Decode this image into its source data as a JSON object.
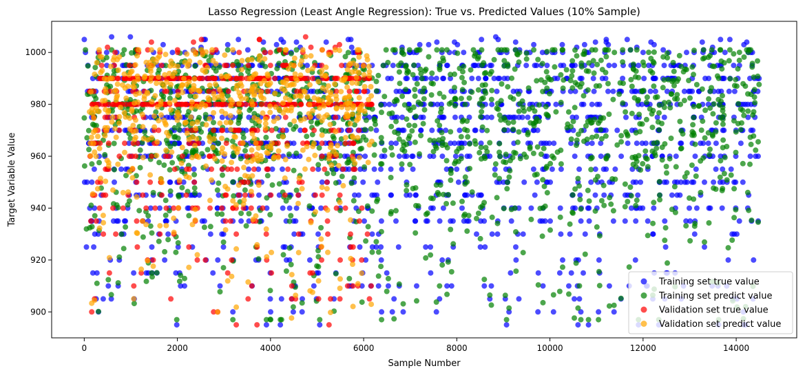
{
  "chart_data": {
    "type": "scatter",
    "title": "Lasso Regression (Least Angle Regression): True vs. Predicted Values (10% Sample)",
    "xlabel": "Sample Number",
    "ylabel": "Target Variable Value",
    "xlim": [
      -700,
      15300
    ],
    "ylim": [
      890,
      1012
    ],
    "xticks": [
      0,
      2000,
      4000,
      6000,
      8000,
      10000,
      12000,
      14000
    ],
    "yticks": [
      900,
      920,
      940,
      960,
      980,
      1000
    ],
    "grid": false,
    "legend_position": "lower-right",
    "marker_alpha": 0.7,
    "series": [
      {
        "name": "Training set true value",
        "color": "#0000ff",
        "x_range": [
          0,
          14500
        ],
        "values_approx": "mostly 930-1000, dense band 960-1000, sparse points down to 895, max ~1006",
        "points": 1450
      },
      {
        "name": "Training set predict value",
        "color": "#008000",
        "x_range": [
          0,
          14500
        ],
        "values_approx": "mostly 940-1000, sparse points down to 897",
        "points": 1450
      },
      {
        "name": "Validation set true value",
        "color": "#ff0000",
        "x_range": [
          100,
          6200
        ],
        "values_approx": "mostly 950-1000, dense rows at 980 and 990, sparse down to 900, max ~1004",
        "points": 620
      },
      {
        "name": "Validation set predict value",
        "color": "#ffa500",
        "x_range": [
          100,
          6200
        ],
        "values_approx": "mostly 955-1000, sparse down to 898",
        "points": 620
      }
    ]
  }
}
